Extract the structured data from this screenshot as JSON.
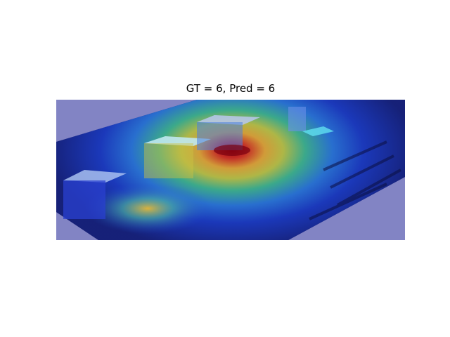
{
  "figure": {
    "title": "GT = 6, Pred = 6"
  },
  "image": {
    "description_icon": "heatmap-overlay-image",
    "colors": {
      "background_overlay": "#8284c4",
      "hot": "#b40000",
      "warm": "#f0d020",
      "mid": "#40c080",
      "cool": "#1a3cc8"
    }
  }
}
